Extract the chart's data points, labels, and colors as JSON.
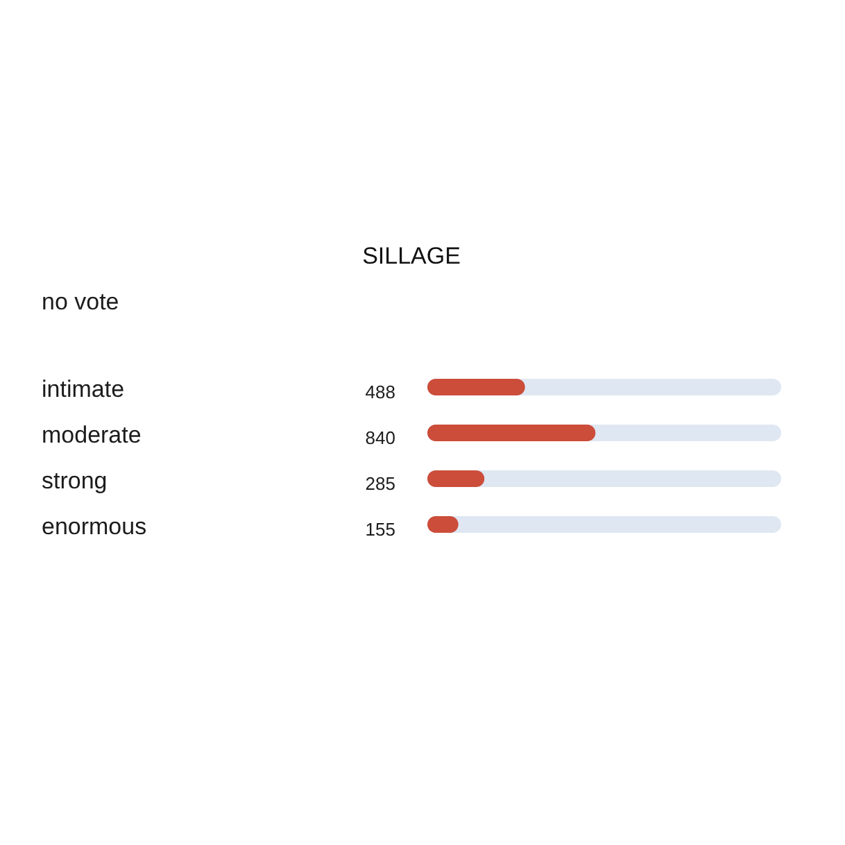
{
  "chart_data": {
    "type": "bar",
    "orientation": "horizontal",
    "title": "SILLAGE",
    "categories": [
      "intimate",
      "moderate",
      "strong",
      "enormous"
    ],
    "values": [
      488,
      840,
      285,
      155
    ],
    "color": "#cb4d3a",
    "xlim": [
      0,
      1768
    ],
    "data_labels": true,
    "tick_labels": "y",
    "annotations": [
      "no vote"
    ]
  }
}
